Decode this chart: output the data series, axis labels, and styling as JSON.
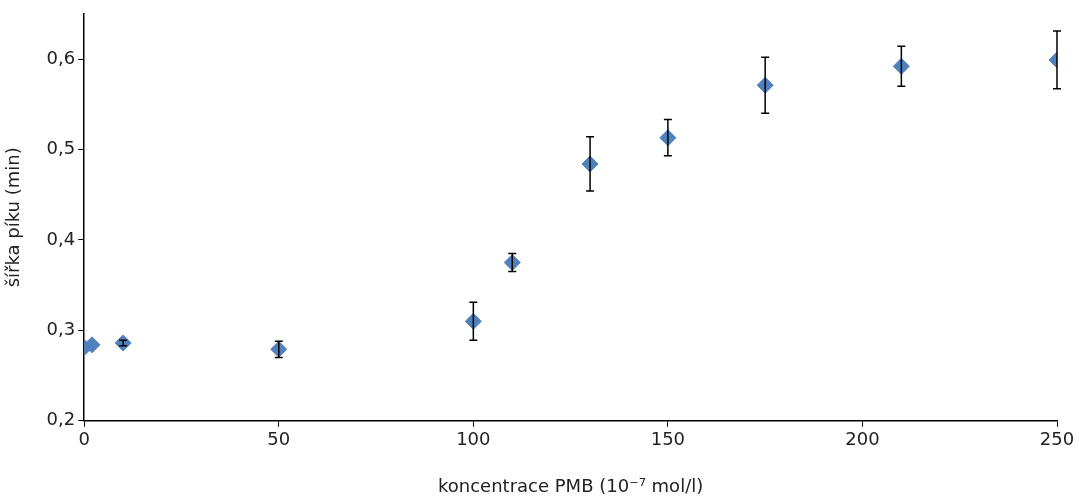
{
  "chart_data": {
    "type": "scatter",
    "xlabel": "koncentrace PMB (10⁻⁷ mol/l)",
    "ylabel": "šířka píku (min)",
    "x": [
      0,
      2,
      10,
      50,
      100,
      110,
      130,
      150,
      175,
      210,
      250
    ],
    "values": [
      0.281,
      0.284,
      0.286,
      0.279,
      0.31,
      0.375,
      0.484,
      0.513,
      0.571,
      0.592,
      0.599
    ],
    "errors": [
      null,
      null,
      0.003,
      0.009,
      0.021,
      0.01,
      0.03,
      0.02,
      0.031,
      0.022,
      0.032
    ],
    "color": "#4f81bd",
    "marker": "diamond",
    "grid": false,
    "legend": false,
    "xlim": [
      0,
      250
    ],
    "xticks": [
      0,
      50,
      100,
      150,
      200,
      250
    ],
    "ylim": [
      0.2,
      0.65
    ],
    "yticks": [
      {
        "value": 0.2,
        "label": "0,2"
      },
      {
        "value": 0.3,
        "label": "0,3"
      },
      {
        "value": 0.4,
        "label": "0,4"
      },
      {
        "value": 0.5,
        "label": "0,5"
      },
      {
        "value": 0.6,
        "label": "0,6"
      }
    ]
  }
}
